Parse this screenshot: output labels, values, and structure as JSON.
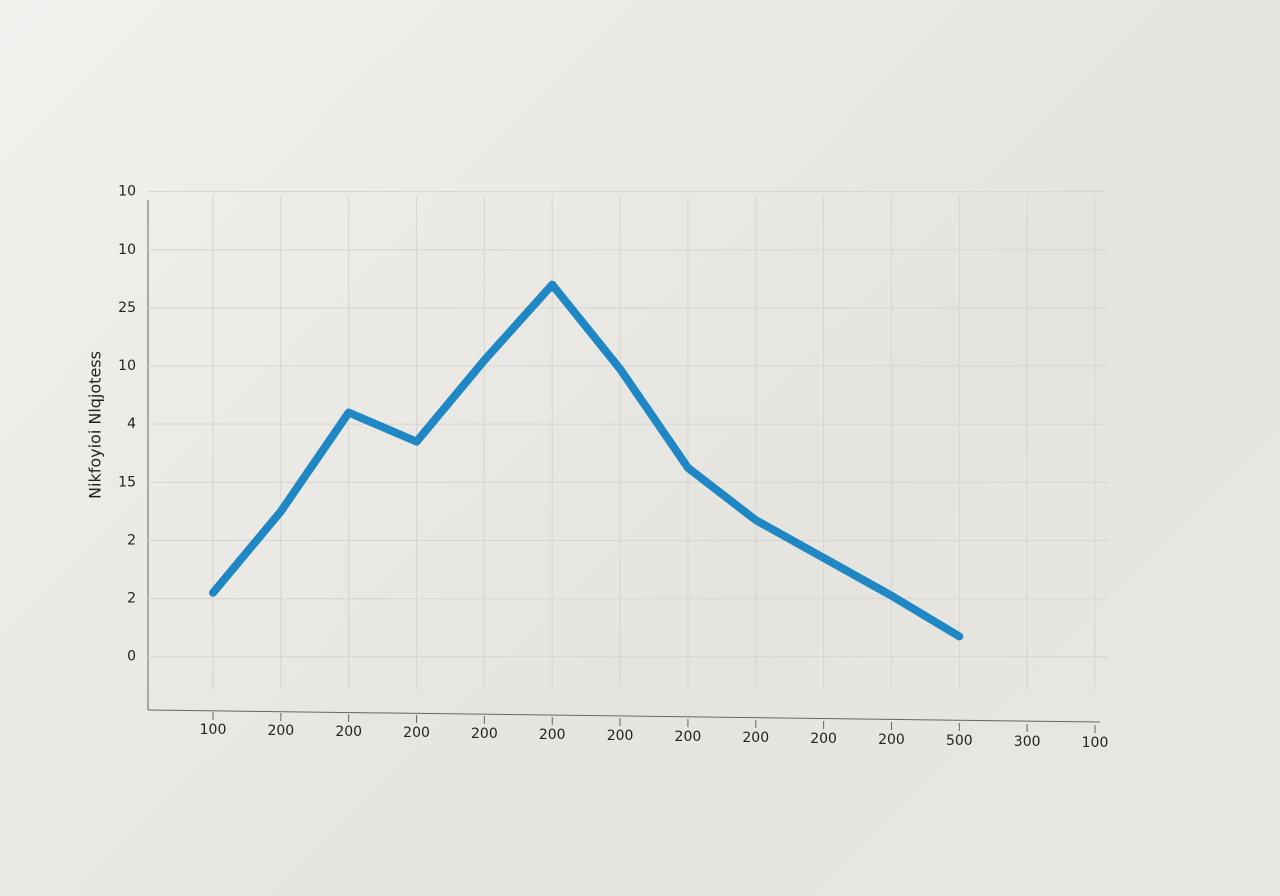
{
  "chart_data": {
    "type": "line",
    "y_label": "Nikfoyioi Nlqjotess",
    "categories": [
      "100",
      "200",
      "200",
      "200",
      "200",
      "200",
      "200",
      "200",
      "200",
      "200",
      "200",
      "500",
      "300",
      "100"
    ],
    "series": [
      {
        "name": null,
        "color": "#1f87c4",
        "values": [
          1.1,
          2.5,
          4.2,
          3.7,
          5.1,
          6.4,
          4.95,
          3.25,
          2.35,
          1.7,
          1.05,
          0.35,
          null,
          null
        ]
      }
    ],
    "ylim": [
      -0.4,
      8.2
    ],
    "yticks": [
      {
        "value": 0,
        "label": "0"
      },
      {
        "value": 1,
        "label": "2"
      },
      {
        "value": 2,
        "label": "2"
      },
      {
        "value": 3,
        "label": "15"
      },
      {
        "value": 4,
        "label": "4"
      },
      {
        "value": 5,
        "label": "10"
      },
      {
        "value": 6,
        "label": "25"
      },
      {
        "value": 7,
        "label": "10"
      },
      {
        "value": 8,
        "label": "10"
      }
    ],
    "grid": true
  }
}
